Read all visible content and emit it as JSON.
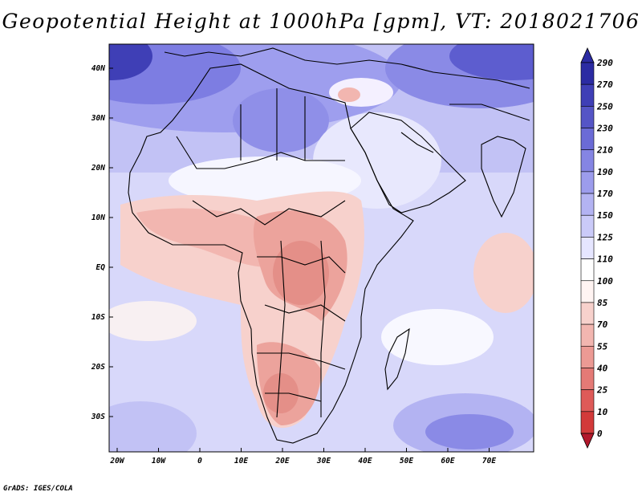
{
  "title": "Geopotential Height at 1000hPa [gpm], VT: 2018021706",
  "credit": "GrADS: IGES/COLA",
  "map": {
    "lat_labels": [
      "40N",
      "30N",
      "20N",
      "10N",
      "EQ",
      "10S",
      "20S",
      "30S"
    ],
    "lon_labels": [
      "20W",
      "10W",
      "0",
      "10E",
      "20E",
      "30E",
      "40E",
      "50E",
      "60E",
      "70E"
    ],
    "legend": {
      "levels": [
        "0",
        "10",
        "25",
        "40",
        "55",
        "70",
        "85",
        "100",
        "110",
        "125",
        "150",
        "170",
        "190",
        "210",
        "230",
        "250",
        "270",
        "290"
      ],
      "colors": [
        "#b2182b",
        "#d23a3a",
        "#de5a58",
        "#e47a76",
        "#ec9a94",
        "#f2b6b0",
        "#f7d1cc",
        "#fff4f2",
        "#ffffff",
        "#e6e6ff",
        "#cacaf8",
        "#b3b3f2",
        "#9c9cec",
        "#8585e3",
        "#6b6bd6",
        "#5555c6",
        "#3f3fb6",
        "#2b2ba3"
      ]
    }
  },
  "chart_data": {
    "type": "heatmap",
    "variable": "Geopotential Height at 1000hPa",
    "units": "gpm",
    "valid_time": "2018021706",
    "lon_range": [
      -22,
      80
    ],
    "lat_range": [
      -36,
      45
    ],
    "contour_levels": [
      0,
      10,
      25,
      40,
      55,
      70,
      85,
      100,
      110,
      125,
      150,
      170,
      190,
      210,
      230,
      250,
      270,
      290
    ]
  }
}
